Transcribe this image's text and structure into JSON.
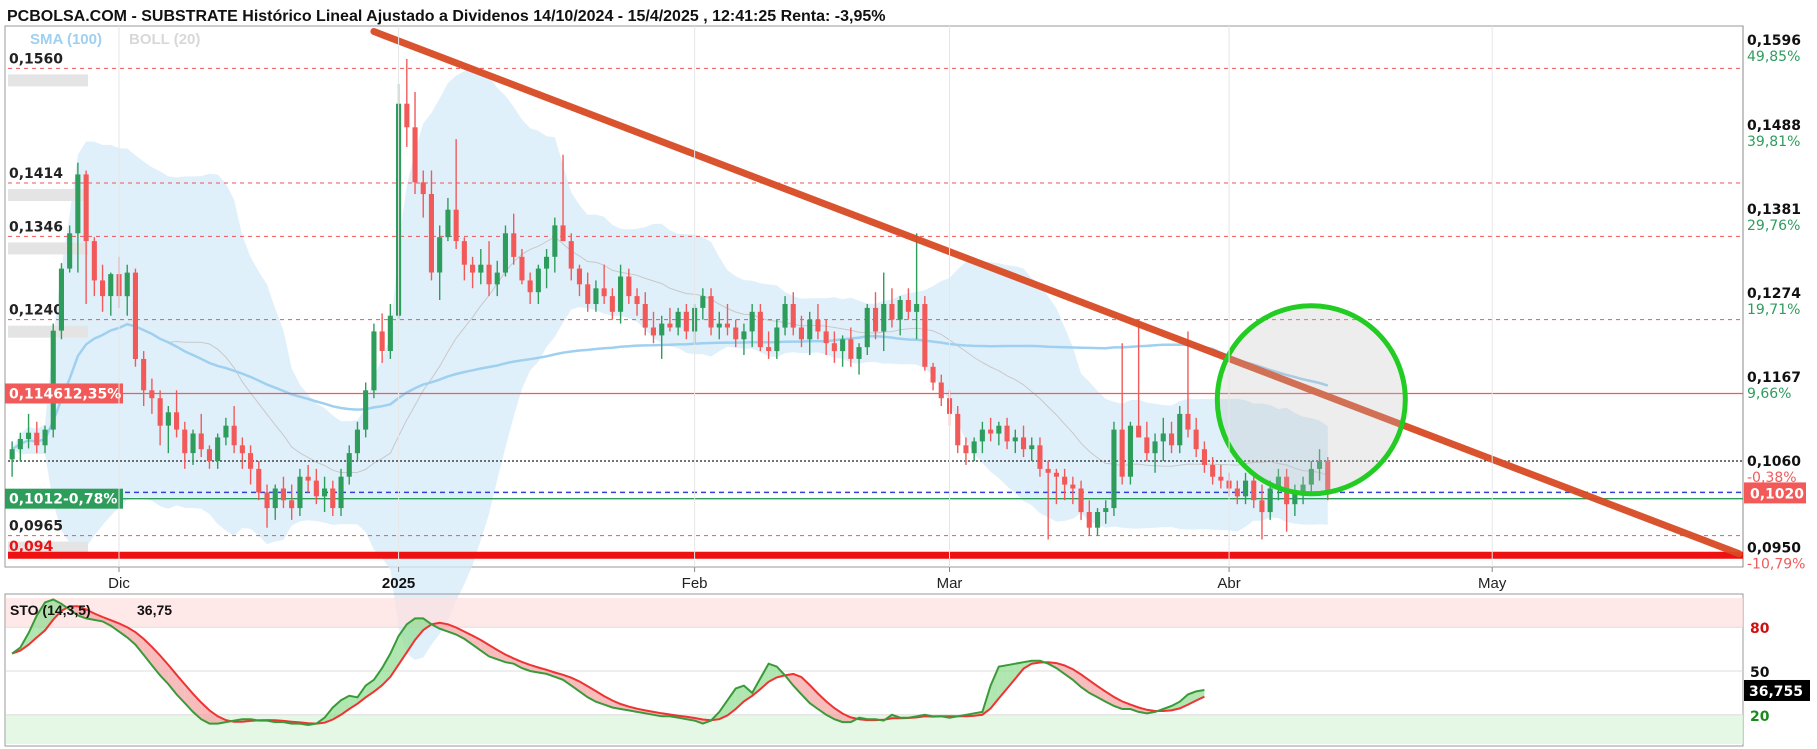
{
  "header": {
    "title": "PCBOLSA.COM - SUBSTRATE Histórico Lineal Ajustado a Dividenos 14/10/2024 - 15/4/2025 , 12:41:25 Renta: -3,95%",
    "legend_sma": "SMA (100)",
    "legend_boll": "BOLL (20)"
  },
  "colors": {
    "up": "#2e9d5c",
    "down": "#f25a5a",
    "trend": "#d84a24",
    "support": "#ee1111",
    "boll_fill": "#d6ebfa",
    "sma": "#9fd0f0",
    "circle": "#22cc22",
    "sto_k": "#3a9a3a",
    "sto_d": "#ee3333"
  },
  "chart_data": {
    "type": "candlestick",
    "x_axis": {
      "labels": [
        {
          "text": "Dic",
          "idx": 13
        },
        {
          "text": "2025",
          "idx": 47,
          "bold": true
        },
        {
          "text": "Feb",
          "idx": 83
        },
        {
          "text": "Mar",
          "idx": 114
        },
        {
          "text": "Abr",
          "idx": 148
        },
        {
          "text": "May",
          "idx": 180
        }
      ],
      "slots": 211
    },
    "y_axis": {
      "range": [
        0.0925,
        0.1614
      ],
      "ticks": [
        {
          "price": "0,1596",
          "pct": "49,85%",
          "value": 0.1596,
          "pct_color": "#2e9d5c"
        },
        {
          "price": "0,1488",
          "pct": "39,81%",
          "value": 0.1488,
          "pct_color": "#2e9d5c"
        },
        {
          "price": "0,1381",
          "pct": "29,76%",
          "value": 0.1381,
          "pct_color": "#2e9d5c"
        },
        {
          "price": "0,1274",
          "pct": "19,71%",
          "value": 0.1274,
          "pct_color": "#2e9d5c"
        },
        {
          "price": "0,1167",
          "pct": "9,66%",
          "value": 0.1167,
          "pct_color": "#2e9d5c"
        },
        {
          "price": "0,1060",
          "pct": "-0,38%",
          "value": 0.106,
          "pct_color": "#f25a5a"
        },
        {
          "price": "0,0950",
          "pct": "-10,79%",
          "value": 0.095,
          "pct_color": "#f25a5a"
        }
      ],
      "last_price": {
        "text": "0,1020",
        "value": 0.102
      }
    },
    "levels": [
      {
        "label": "0,1560",
        "value": 0.156,
        "style": "dashed"
      },
      {
        "label": "0,1414",
        "value": 0.1414,
        "style": "dashed"
      },
      {
        "label": "0,1346",
        "value": 0.1346,
        "style": "dashed"
      },
      {
        "label": "0,1240",
        "value": 0.124,
        "style": "dashed"
      },
      {
        "label": "0,0965",
        "value": 0.0965,
        "style": "dashed"
      },
      {
        "label": "0,094",
        "value": 0.094,
        "style": "support"
      }
    ],
    "markers": [
      {
        "label": "0,1146",
        "pct": "12,35%",
        "value": 0.1146,
        "color": "#f25a5a"
      },
      {
        "label": "0,1012",
        "pct": "-0,78%",
        "value": 0.1012,
        "color": "#2e9d5c"
      }
    ],
    "trendline": {
      "from": {
        "idx": 44,
        "value": 0.1607
      },
      "to": {
        "idx": 210,
        "value": 0.0942
      }
    },
    "candles": [
      [
        0.1062,
        0.1085,
        0.104,
        0.1075
      ],
      [
        0.1075,
        0.1096,
        0.106,
        0.1088
      ],
      [
        0.1088,
        0.112,
        0.1076,
        0.1096
      ],
      [
        0.1096,
        0.111,
        0.107,
        0.108
      ],
      [
        0.108,
        0.1105,
        0.107,
        0.11
      ],
      [
        0.11,
        0.1235,
        0.109,
        0.1226
      ],
      [
        0.1226,
        0.1312,
        0.1215,
        0.1305
      ],
      [
        0.1305,
        0.136,
        0.13,
        0.135
      ],
      [
        0.135,
        0.144,
        0.13,
        0.1425
      ],
      [
        0.1425,
        0.143,
        0.126,
        0.134
      ],
      [
        0.134,
        0.1345,
        0.127,
        0.129
      ],
      [
        0.129,
        0.131,
        0.125,
        0.127
      ],
      [
        0.127,
        0.13,
        0.1245,
        0.1298
      ],
      [
        0.1298,
        0.132,
        0.1255,
        0.127
      ],
      [
        0.127,
        0.131,
        0.1245,
        0.13
      ],
      [
        0.13,
        0.1305,
        0.118,
        0.119
      ],
      [
        0.119,
        0.12,
        0.113,
        0.115
      ],
      [
        0.115,
        0.1165,
        0.112,
        0.114
      ],
      [
        0.114,
        0.115,
        0.108,
        0.1105
      ],
      [
        0.1105,
        0.113,
        0.107,
        0.1122
      ],
      [
        0.1122,
        0.115,
        0.109,
        0.11
      ],
      [
        0.11,
        0.111,
        0.105,
        0.107
      ],
      [
        0.107,
        0.11,
        0.1055,
        0.1095
      ],
      [
        0.1095,
        0.112,
        0.1065,
        0.1075
      ],
      [
        0.1075,
        0.108,
        0.105,
        0.106
      ],
      [
        0.106,
        0.1095,
        0.105,
        0.109
      ],
      [
        0.109,
        0.1115,
        0.108,
        0.1105
      ],
      [
        0.1105,
        0.113,
        0.107,
        0.108
      ],
      [
        0.108,
        0.109,
        0.105,
        0.107
      ],
      [
        0.107,
        0.108,
        0.103,
        0.105
      ],
      [
        0.105,
        0.106,
        0.101,
        0.102
      ],
      [
        0.102,
        0.103,
        0.0975,
        0.1
      ],
      [
        0.1,
        0.103,
        0.0985,
        0.1025
      ],
      [
        0.1025,
        0.104,
        0.1,
        0.101
      ],
      [
        0.101,
        0.103,
        0.0985,
        0.1
      ],
      [
        0.1,
        0.105,
        0.099,
        0.104
      ],
      [
        0.104,
        0.1055,
        0.102,
        0.1035
      ],
      [
        0.1035,
        0.105,
        0.1005,
        0.1015
      ],
      [
        0.1015,
        0.104,
        0.0995,
        0.1025
      ],
      [
        0.1025,
        0.1035,
        0.099,
        0.1
      ],
      [
        0.1,
        0.105,
        0.099,
        0.104
      ],
      [
        0.104,
        0.108,
        0.103,
        0.107
      ],
      [
        0.107,
        0.111,
        0.106,
        0.11
      ],
      [
        0.11,
        0.116,
        0.109,
        0.115
      ],
      [
        0.115,
        0.1235,
        0.114,
        0.1225
      ],
      [
        0.1225,
        0.1248,
        0.1185,
        0.12
      ],
      [
        0.12,
        0.126,
        0.119,
        0.1245
      ],
      [
        0.1245,
        0.154,
        0.124,
        0.1515
      ],
      [
        0.1515,
        0.1572,
        0.146,
        0.1485
      ],
      [
        0.1485,
        0.153,
        0.14,
        0.1415
      ],
      [
        0.1415,
        0.143,
        0.137,
        0.14
      ],
      [
        0.14,
        0.143,
        0.129,
        0.13
      ],
      [
        0.13,
        0.136,
        0.1265,
        0.1345
      ],
      [
        0.1345,
        0.1395,
        0.134,
        0.138
      ],
      [
        0.138,
        0.147,
        0.133,
        0.134
      ],
      [
        0.134,
        0.1345,
        0.129,
        0.131
      ],
      [
        0.131,
        0.132,
        0.128,
        0.13
      ],
      [
        0.13,
        0.133,
        0.1285,
        0.131
      ],
      [
        0.131,
        0.134,
        0.127,
        0.1285
      ],
      [
        0.1285,
        0.1315,
        0.127,
        0.13
      ],
      [
        0.13,
        0.136,
        0.1295,
        0.135
      ],
      [
        0.135,
        0.1375,
        0.131,
        0.132
      ],
      [
        0.132,
        0.133,
        0.1285,
        0.129
      ],
      [
        0.129,
        0.13,
        0.126,
        0.1275
      ],
      [
        0.1275,
        0.131,
        0.126,
        0.1305
      ],
      [
        0.1305,
        0.133,
        0.128,
        0.132
      ],
      [
        0.132,
        0.137,
        0.13,
        0.136
      ],
      [
        0.136,
        0.145,
        0.134,
        0.134
      ],
      [
        0.134,
        0.135,
        0.129,
        0.1305
      ],
      [
        0.1305,
        0.131,
        0.127,
        0.1285
      ],
      [
        0.1285,
        0.13,
        0.125,
        0.126
      ],
      [
        0.126,
        0.129,
        0.125,
        0.128
      ],
      [
        0.128,
        0.131,
        0.126,
        0.127
      ],
      [
        0.127,
        0.128,
        0.124,
        0.125
      ],
      [
        0.125,
        0.131,
        0.1235,
        0.1295
      ],
      [
        0.1295,
        0.1305,
        0.126,
        0.127
      ],
      [
        0.127,
        0.128,
        0.1245,
        0.126
      ],
      [
        0.126,
        0.1275,
        0.122,
        0.123
      ],
      [
        0.123,
        0.125,
        0.121,
        0.122
      ],
      [
        0.122,
        0.1245,
        0.119,
        0.1235
      ],
      [
        0.1235,
        0.1255,
        0.1225,
        0.123
      ],
      [
        0.123,
        0.1255,
        0.122,
        0.125
      ],
      [
        0.125,
        0.126,
        0.1215,
        0.1225
      ],
      [
        0.1225,
        0.126,
        0.121,
        0.1255
      ],
      [
        0.1255,
        0.128,
        0.124,
        0.127
      ],
      [
        0.127,
        0.128,
        0.122,
        0.123
      ],
      [
        0.123,
        0.125,
        0.1215,
        0.1235
      ],
      [
        0.1235,
        0.126,
        0.122,
        0.123
      ],
      [
        0.123,
        0.124,
        0.1205,
        0.1215
      ],
      [
        0.1215,
        0.1235,
        0.1195,
        0.1225
      ],
      [
        0.1225,
        0.126,
        0.1205,
        0.125
      ],
      [
        0.125,
        0.126,
        0.12,
        0.1205
      ],
      [
        0.1205,
        0.1225,
        0.119,
        0.12
      ],
      [
        0.12,
        0.124,
        0.119,
        0.123
      ],
      [
        0.123,
        0.127,
        0.122,
        0.126
      ],
      [
        0.126,
        0.1275,
        0.122,
        0.123
      ],
      [
        0.123,
        0.1245,
        0.1205,
        0.1215
      ],
      [
        0.1215,
        0.125,
        0.1195,
        0.124
      ],
      [
        0.124,
        0.126,
        0.1215,
        0.1225
      ],
      [
        0.1225,
        0.124,
        0.1195,
        0.121
      ],
      [
        0.121,
        0.1225,
        0.1185,
        0.12
      ],
      [
        0.12,
        0.122,
        0.118,
        0.1215
      ],
      [
        0.1215,
        0.123,
        0.118,
        0.119
      ],
      [
        0.119,
        0.121,
        0.117,
        0.1205
      ],
      [
        0.1205,
        0.126,
        0.1195,
        0.1255
      ],
      [
        0.1255,
        0.1275,
        0.1215,
        0.1225
      ],
      [
        0.1225,
        0.13,
        0.12,
        0.126
      ],
      [
        0.126,
        0.128,
        0.123,
        0.124
      ],
      [
        0.124,
        0.127,
        0.122,
        0.1265
      ],
      [
        0.1265,
        0.128,
        0.124,
        0.125
      ],
      [
        0.125,
        0.135,
        0.1215,
        0.126
      ],
      [
        0.126,
        0.127,
        0.1175,
        0.118
      ],
      [
        0.118,
        0.1185,
        0.115,
        0.116
      ],
      [
        0.116,
        0.117,
        0.113,
        0.114
      ],
      [
        0.114,
        0.115,
        0.1105,
        0.112
      ],
      [
        0.112,
        0.113,
        0.107,
        0.108
      ],
      [
        0.108,
        0.109,
        0.1055,
        0.107
      ],
      [
        0.107,
        0.109,
        0.106,
        0.1085
      ],
      [
        0.1085,
        0.111,
        0.107,
        0.11
      ],
      [
        0.11,
        0.1115,
        0.1085,
        0.1095
      ],
      [
        0.1095,
        0.111,
        0.108,
        0.1105
      ],
      [
        0.1105,
        0.1115,
        0.1075,
        0.1085
      ],
      [
        0.1085,
        0.11,
        0.107,
        0.109
      ],
      [
        0.109,
        0.1105,
        0.1065,
        0.1075
      ],
      [
        0.1075,
        0.109,
        0.106,
        0.108
      ],
      [
        0.108,
        0.109,
        0.104,
        0.105
      ],
      [
        0.105,
        0.106,
        0.096,
        0.1045
      ],
      [
        0.1045,
        0.105,
        0.1005,
        0.104
      ],
      [
        0.104,
        0.105,
        0.101,
        0.103
      ],
      [
        0.103,
        0.104,
        0.1005,
        0.1025
      ],
      [
        0.1025,
        0.1035,
        0.0985,
        0.0995
      ],
      [
        0.0995,
        0.101,
        0.0965,
        0.0975
      ],
      [
        0.0975,
        0.1,
        0.0965,
        0.0995
      ],
      [
        0.0995,
        0.101,
        0.098,
        0.1
      ],
      [
        0.1,
        0.111,
        0.099,
        0.11
      ],
      [
        0.11,
        0.121,
        0.103,
        0.104
      ],
      [
        0.104,
        0.111,
        0.103,
        0.1105
      ],
      [
        0.1105,
        0.124,
        0.109,
        0.109
      ],
      [
        0.109,
        0.111,
        0.106,
        0.107
      ],
      [
        0.107,
        0.1095,
        0.1045,
        0.1085
      ],
      [
        0.1085,
        0.1115,
        0.106,
        0.1095
      ],
      [
        0.1095,
        0.111,
        0.107,
        0.108
      ],
      [
        0.108,
        0.113,
        0.107,
        0.112
      ],
      [
        0.112,
        0.1225,
        0.109,
        0.11
      ],
      [
        0.11,
        0.1115,
        0.1065,
        0.1075
      ],
      [
        0.1075,
        0.1085,
        0.1045,
        0.1055
      ],
      [
        0.1055,
        0.1065,
        0.103,
        0.104
      ],
      [
        0.104,
        0.1055,
        0.1025,
        0.1035
      ],
      [
        0.1035,
        0.1045,
        0.1015,
        0.1025
      ],
      [
        0.1025,
        0.1035,
        0.1005,
        0.1015
      ],
      [
        0.1015,
        0.1045,
        0.1005,
        0.1035
      ],
      [
        0.1035,
        0.104,
        0.1,
        0.101
      ],
      [
        0.101,
        0.103,
        0.096,
        0.0995
      ],
      [
        0.0995,
        0.1035,
        0.0985,
        0.1025
      ],
      [
        0.1025,
        0.105,
        0.101,
        0.104
      ],
      [
        0.104,
        0.105,
        0.097,
        0.1005
      ],
      [
        0.1005,
        0.103,
        0.099,
        0.102
      ],
      [
        0.102,
        0.104,
        0.1005,
        0.103
      ],
      [
        0.103,
        0.106,
        0.102,
        0.105
      ],
      [
        0.105,
        0.1075,
        0.1035,
        0.106
      ],
      [
        0.106,
        0.1065,
        0.101,
        0.102
      ]
    ],
    "volumes": [
      0,
      0,
      0,
      0,
      0,
      0,
      0,
      0,
      0,
      0,
      0,
      0,
      0,
      0,
      0,
      0,
      0,
      0,
      0,
      0,
      0,
      0,
      0,
      0,
      0,
      0,
      0,
      0,
      0,
      0,
      0,
      0,
      0,
      0,
      0,
      0,
      0,
      0,
      0,
      0,
      0,
      0,
      0,
      0,
      0,
      0,
      0,
      0,
      0,
      0,
      0,
      0,
      0,
      0,
      0,
      0,
      0,
      0,
      0,
      0,
      0,
      0,
      0,
      0,
      0,
      0,
      0,
      0,
      0,
      0,
      0,
      0,
      0,
      0,
      0,
      0,
      0,
      0,
      0,
      0,
      0,
      0,
      0,
      0,
      0,
      0,
      0,
      0,
      0,
      0,
      0,
      0,
      0,
      0,
      0,
      0,
      0,
      0,
      0,
      0,
      0,
      0,
      0,
      0,
      0,
      0,
      0,
      0,
      0,
      0,
      0,
      0,
      0,
      0,
      0,
      0,
      0,
      0,
      0,
      0,
      0,
      0,
      0,
      0,
      0,
      0,
      0,
      0,
      0,
      0,
      0,
      0,
      0,
      0,
      0,
      0,
      0,
      0,
      0,
      0,
      0,
      0,
      0,
      0,
      0,
      0,
      0,
      0,
      0,
      0,
      0,
      0,
      0,
      0,
      0,
      0,
      0,
      0,
      0,
      0,
      0
    ],
    "sto": {
      "label": "STO (14,3,5)",
      "value_text": "36,75",
      "last_text": "36,755",
      "range": [
        0,
        100
      ],
      "levels": [
        {
          "text": "80",
          "value": 80,
          "color": "#d01010"
        },
        {
          "text": "50",
          "value": 50,
          "color": "#111111"
        },
        {
          "text": "20",
          "value": 20,
          "color": "#1a8a1a"
        }
      ],
      "k": [
        62,
        66,
        76,
        88,
        97,
        99,
        96,
        92,
        88,
        86,
        85,
        84,
        81,
        77,
        73,
        68,
        61,
        54,
        47,
        41,
        34,
        28,
        22,
        17,
        14,
        14,
        15,
        16,
        17,
        17,
        16,
        16,
        15,
        15,
        14,
        14,
        13,
        14,
        18,
        25,
        30,
        33,
        32,
        40,
        44,
        52,
        62,
        74,
        82,
        86,
        86,
        82,
        79,
        77,
        75,
        72,
        68,
        64,
        60,
        58,
        56,
        55,
        52,
        50,
        49,
        48,
        46,
        44,
        40,
        36,
        32,
        29,
        27,
        25,
        24,
        23,
        22,
        21,
        20,
        19,
        19,
        18,
        17,
        16,
        14,
        16,
        22,
        30,
        38,
        40,
        35,
        45,
        55,
        53,
        47,
        40,
        34,
        28,
        24,
        20,
        17,
        15,
        15,
        18,
        17,
        17,
        16,
        20,
        18,
        18,
        19,
        20,
        19,
        19,
        18,
        19,
        20,
        21,
        22,
        40,
        53,
        54,
        55,
        56,
        57,
        57,
        55,
        52,
        48,
        44,
        39,
        35,
        32,
        29,
        26,
        24,
        24,
        22,
        21,
        22,
        24,
        26,
        29,
        34,
        36,
        37
      ]
    }
  }
}
